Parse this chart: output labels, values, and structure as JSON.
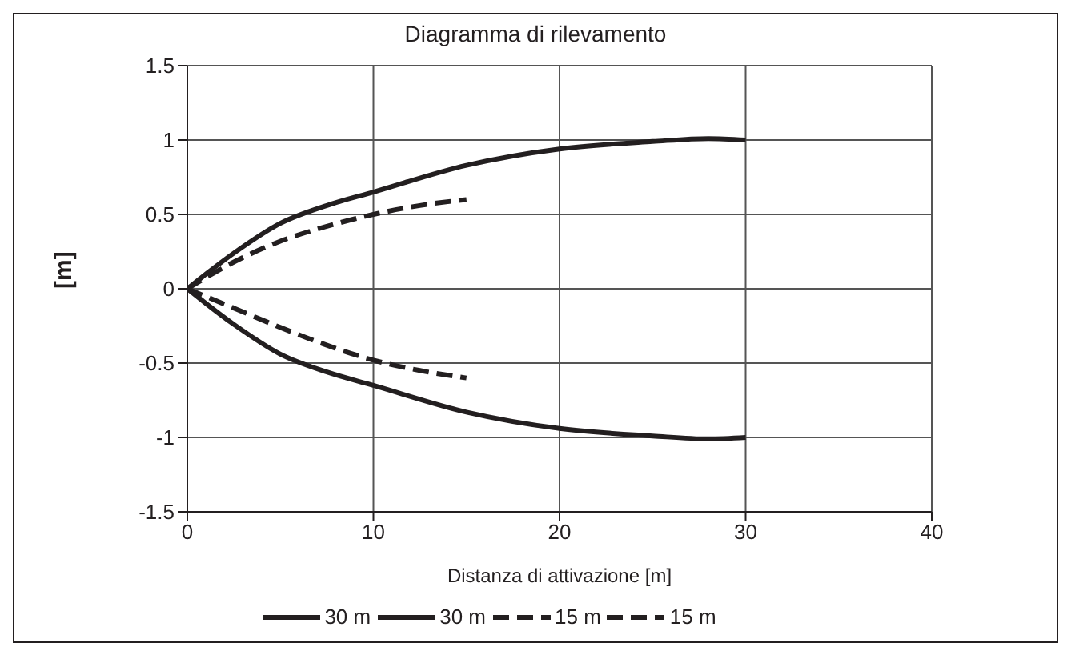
{
  "chart_data": {
    "type": "line",
    "title": "Diagramma di rilevamento",
    "xlabel": "Distanza di attivazione [m]",
    "ylabel": "[m]",
    "xlim": [
      0,
      40
    ],
    "xticks": [
      0,
      10,
      20,
      30,
      40
    ],
    "ylim": [
      -1.5,
      1.5
    ],
    "yticks": [
      -1.5,
      -1,
      -0.5,
      0,
      0.5,
      1,
      1.5
    ],
    "grid": true,
    "legend": "bottom",
    "marker": "none",
    "series": [
      {
        "name": "30 m",
        "color": "#231f20",
        "line_style": "solid",
        "x": [
          0,
          2.5,
          5,
          7.5,
          10,
          15,
          20,
          25,
          28,
          30
        ],
        "values": [
          0,
          0.24,
          0.44,
          0.56,
          0.65,
          0.83,
          0.94,
          0.99,
          1.01,
          1.0
        ]
      },
      {
        "name": "30 m",
        "color": "#231f20",
        "line_style": "solid",
        "x": [
          0,
          2.5,
          5,
          7.5,
          10,
          15,
          20,
          25,
          28,
          30
        ],
        "values": [
          0,
          -0.24,
          -0.44,
          -0.56,
          -0.65,
          -0.83,
          -0.94,
          -0.99,
          -1.01,
          -1.0
        ]
      },
      {
        "name": "15 m",
        "color": "#231f20",
        "line_style": "dashed",
        "x": [
          0,
          2.5,
          5,
          7.5,
          10,
          12.5,
          15
        ],
        "values": [
          0,
          0.18,
          0.32,
          0.42,
          0.5,
          0.56,
          0.6
        ]
      },
      {
        "name": "15 m",
        "color": "#231f20",
        "line_style": "dashed",
        "x": [
          0,
          2.5,
          5,
          7.5,
          10,
          12.5,
          15
        ],
        "values": [
          0,
          -0.13,
          -0.26,
          -0.38,
          -0.48,
          -0.55,
          -0.6
        ]
      }
    ]
  }
}
